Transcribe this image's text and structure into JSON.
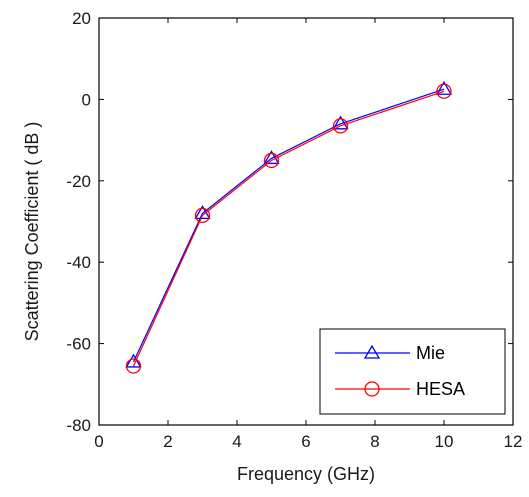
{
  "chart_data": {
    "type": "line",
    "title": "",
    "xlabel": "Frequency (GHz)",
    "ylabel": "Scattering Coefficient ( dB )",
    "xlim": [
      0,
      12
    ],
    "ylim": [
      -80,
      20
    ],
    "xticks": [
      "0",
      "2",
      "4",
      "6",
      "8",
      "10",
      "12"
    ],
    "yticks": [
      "20",
      "0",
      "-20",
      "-40",
      "-60",
      "-80"
    ],
    "grid": false,
    "legend_position": "bottom-right",
    "series": [
      {
        "name": "Mie",
        "color": "#0000ff",
        "marker": "triangle",
        "x": [
          1,
          3,
          5,
          7,
          10
        ],
        "y": [
          -64.5,
          -28,
          -14.5,
          -6,
          2.5
        ]
      },
      {
        "name": "HESA",
        "color": "#ff0000",
        "marker": "circle",
        "x": [
          1,
          3,
          5,
          7,
          10
        ],
        "y": [
          -65.5,
          -28.5,
          -15,
          -6.5,
          2
        ]
      }
    ]
  }
}
